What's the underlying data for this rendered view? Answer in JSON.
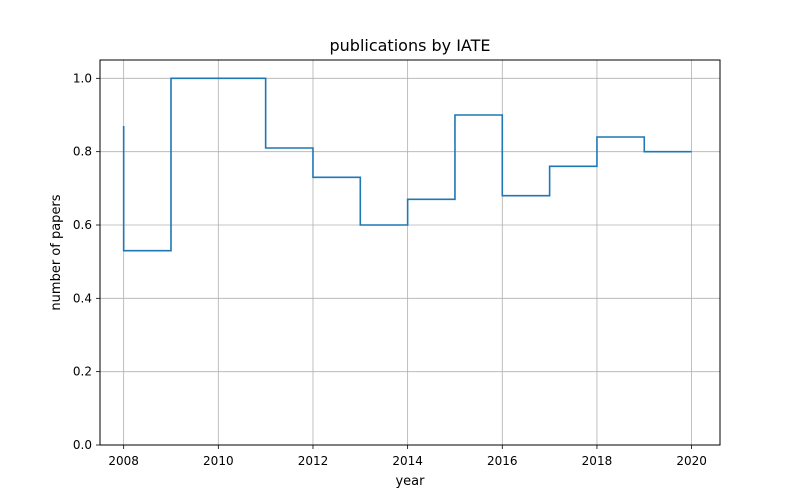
{
  "chart_data": {
    "type": "line",
    "drawstyle": "steps-post",
    "title": "publications by IATE",
    "xlabel": "year",
    "ylabel": "number of papers",
    "xlim": [
      2007.5,
      2020.6
    ],
    "ylim": [
      0.0,
      1.05
    ],
    "grid": true,
    "xticks": [
      2008,
      2010,
      2012,
      2014,
      2016,
      2018,
      2020
    ],
    "xtick_labels": [
      "2008",
      "2010",
      "2012",
      "2014",
      "2016",
      "2018",
      "2020"
    ],
    "yticks": [
      0.0,
      0.2,
      0.4,
      0.6,
      0.8,
      1.0
    ],
    "ytick_labels": [
      "0.0",
      "0.2",
      "0.4",
      "0.6",
      "0.8",
      "1.0"
    ],
    "series": [
      {
        "color": "#1f77b4",
        "x": [
          2008,
          2009,
          2010,
          2011,
          2012,
          2013,
          2014,
          2015,
          2016,
          2017,
          2018,
          2019,
          2020
        ],
        "y": [
          0.53,
          1.0,
          1.0,
          0.81,
          0.73,
          0.6,
          0.67,
          0.9,
          0.68,
          0.76,
          0.84,
          0.8,
          0.8
        ]
      }
    ]
  }
}
